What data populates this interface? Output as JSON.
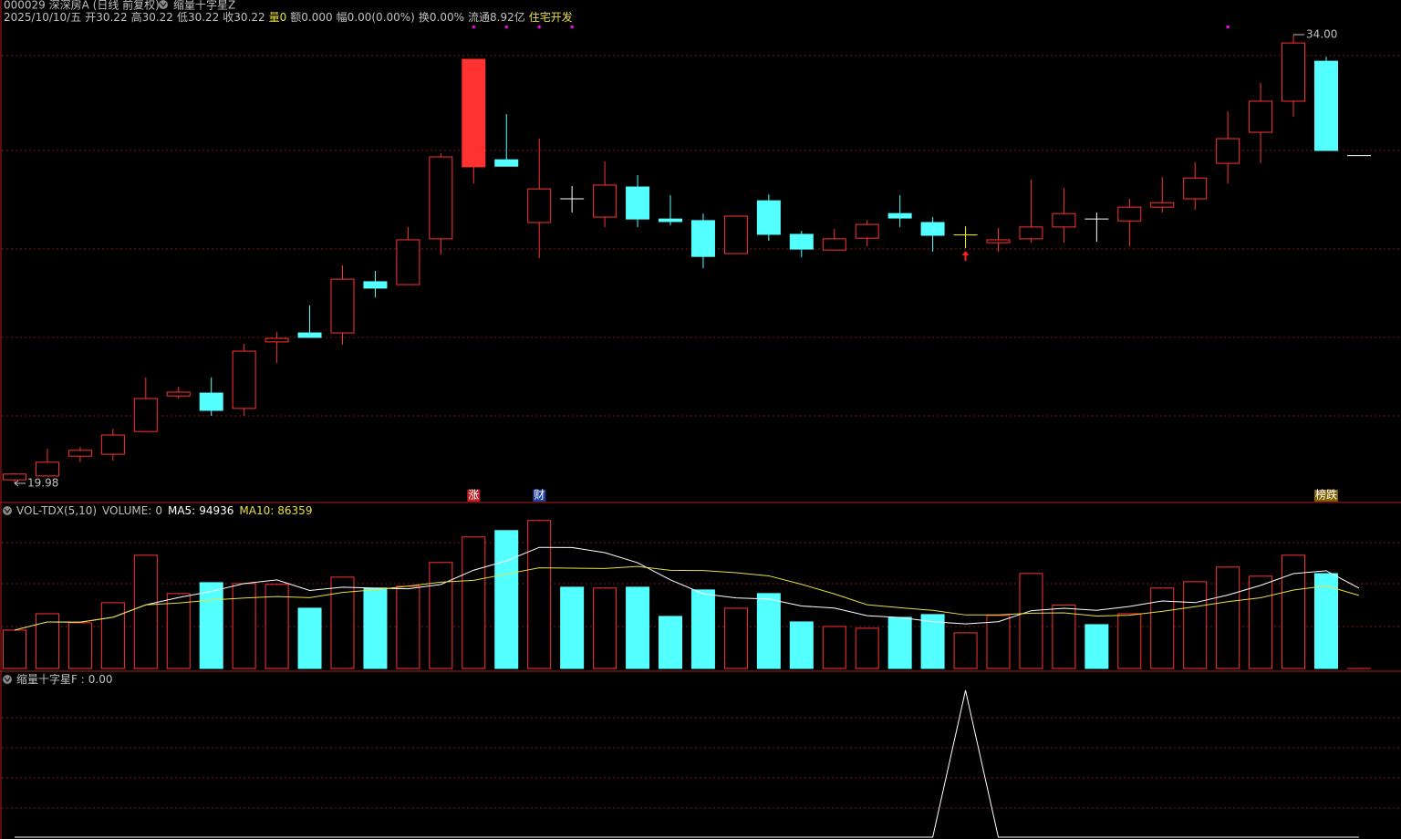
{
  "header": {
    "line1": [
      "000029 深深房A (日线 前复权)",
      "缩量十字星Z"
    ],
    "line2": [
      {
        "text": "2025/10/10/五",
        "color": "#c0c0c0"
      },
      {
        "text": "开30.22",
        "color": "#c0c0c0"
      },
      {
        "text": "高30.22",
        "color": "#c0c0c0"
      },
      {
        "text": "低30.22",
        "color": "#c0c0c0"
      },
      {
        "text": "收30.22",
        "color": "#c0c0c0"
      },
      {
        "text": "量0",
        "color": "#e8e040"
      },
      {
        "text": "额0.000",
        "color": "#c0c0c0"
      },
      {
        "text": "幅0.00(0.00%)",
        "color": "#c0c0c0"
      },
      {
        "text": "换0.00%",
        "color": "#c0c0c0"
      },
      {
        "text": "流通8.92亿",
        "color": "#c0c0c0"
      },
      {
        "text": "住宅开发",
        "color": "#e8e040"
      }
    ]
  },
  "chart_data": {
    "type": "candlestick",
    "open": [
      20.09,
      20.21,
      20.83,
      20.89,
      21.6,
      22.71,
      22.8,
      22.32,
      24.4,
      24.68,
      24.68,
      26.28,
      26.19,
      27.62,
      29.87,
      30.09,
      28.13,
      28.87,
      28.3,
      29.24,
      28.24,
      28.19,
      27.16,
      28.81,
      27.76,
      27.27,
      27.64,
      28.41,
      28.13,
      27.74,
      27.5,
      27.62,
      27.99,
      28.24,
      28.18,
      28.61,
      28.87,
      29.98,
      30.95,
      31.92,
      33.17,
      30.22
    ],
    "high": [
      20.3,
      21.06,
      21.12,
      21.69,
      23.29,
      23.0,
      23.29,
      24.34,
      24.71,
      25.54,
      26.79,
      26.62,
      27.99,
      30.29,
      33.23,
      31.52,
      30.75,
      29.27,
      30.04,
      29.61,
      28.98,
      28.41,
      28.33,
      29.01,
      27.87,
      27.93,
      28.21,
      28.98,
      28.3,
      28.01,
      27.96,
      29.47,
      29.21,
      28.44,
      28.87,
      29.55,
      30.01,
      31.6,
      32.49,
      34.0,
      33.31,
      30.22
    ],
    "low": [
      19.98,
      20.2,
      20.64,
      20.69,
      21.6,
      22.63,
      22.09,
      22.09,
      23.74,
      24.54,
      24.31,
      25.79,
      26.19,
      27.13,
      29.35,
      29.89,
      27.02,
      28.44,
      27.99,
      27.99,
      28.04,
      26.7,
      27.16,
      27.56,
      27.05,
      27.27,
      27.39,
      27.99,
      27.22,
      27.33,
      27.22,
      27.5,
      27.5,
      27.53,
      27.39,
      28.44,
      28.53,
      29.35,
      29.98,
      31.43,
      30.38,
      30.22
    ],
    "close": [
      20.27,
      20.64,
      21.01,
      21.49,
      22.63,
      22.83,
      22.26,
      24.11,
      24.51,
      24.54,
      26.36,
      26.08,
      27.59,
      30.18,
      33.23,
      29.89,
      29.18,
      28.87,
      29.3,
      28.24,
      28.16,
      27.07,
      28.33,
      27.76,
      27.3,
      27.62,
      28.07,
      28.27,
      27.73,
      27.74,
      27.59,
      27.99,
      28.41,
      28.24,
      28.61,
      28.75,
      29.52,
      30.75,
      31.92,
      33.74,
      30.38,
      30.22
    ],
    "ylim": [
      19.98,
      34.0
    ],
    "up_color": "#ff3232",
    "down_color": "#54ffff",
    "doji_color": "#ffffff",
    "filled_up": [
      14
    ],
    "highlight_index": 29,
    "highlight_color": "#ffff00",
    "max_label": {
      "value": 34.0,
      "label": "34.00"
    },
    "min_label": {
      "value": 19.98,
      "label": "19.98"
    },
    "dots": [
      14,
      15,
      16,
      17,
      37
    ],
    "dot_color": "#ff00ff",
    "events": [
      {
        "index": 14,
        "label": "涨",
        "color": "#c02020"
      },
      {
        "index": 16,
        "label": "财",
        "color": "#2040a0"
      },
      {
        "index": 40,
        "label": "榜跌",
        "color": "#806000"
      }
    ],
    "volume": {
      "label": "VOL-TDX(5,10)",
      "volume_label": "VOLUME:",
      "ma5_label": "MA5:",
      "ma5": 94936,
      "ma10_label": "MA10:",
      "ma10": 86359,
      "ma5_color": "#ffffff",
      "ma10_color": "#e8e040",
      "ylim": [
        0,
        195000
      ],
      "values": [
        45300,
        64700,
        54000,
        77700,
        133800,
        88500,
        101400,
        100300,
        99300,
        71200,
        107900,
        95000,
        97100,
        125200,
        155400,
        162900,
        174800,
        96000,
        95000,
        96000,
        61500,
        92800,
        71200,
        88500,
        55000,
        49600,
        47500,
        60400,
        63700,
        42100,
        62600,
        112200,
        74910,
        51800,
        64700,
        95000,
        102500,
        119800,
        109000,
        133800,
        112080,
        0
      ]
    },
    "signal": {
      "label": "缩量十字星F :",
      "last_value": {
        "value": 0,
        "label": "0.00"
      },
      "ylim": [
        0,
        1
      ],
      "color": "#ffffff",
      "values": [
        0,
        0,
        0,
        0,
        0,
        0,
        0,
        0,
        0,
        0,
        0,
        0,
        0,
        0,
        0,
        0,
        0,
        0,
        0,
        0,
        0,
        0,
        0,
        0,
        0,
        0,
        0,
        0,
        0,
        1,
        0,
        0,
        0,
        0,
        0,
        0,
        0,
        0,
        0,
        0,
        0,
        0
      ]
    }
  }
}
